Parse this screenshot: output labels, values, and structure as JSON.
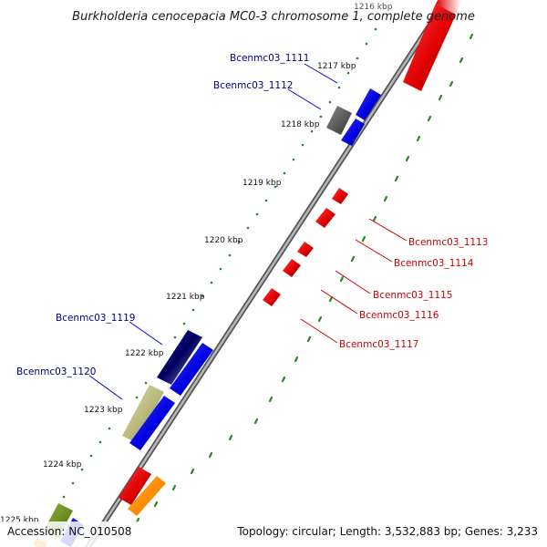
{
  "title": "Burkholderia cenocepacia MC0-3 chromosome 1, complete genome",
  "footer": {
    "accession": "Accession: NC_010508",
    "summary": "Topology: circular; Length: 3,532,883 bp; Genes: 3,233"
  },
  "ticks": [
    "1216 kbp",
    "1217 kbp",
    "1218 kbp",
    "1219 kbp",
    "1220 kbp",
    "1221 kbp",
    "1222 kbp",
    "1223 kbp",
    "1224 kbp",
    "1225 kbp"
  ],
  "colors": {
    "forward_label": "#00008b",
    "reverse_label": "#cc0000",
    "backbone": "#888888",
    "dots": "#228b22",
    "red": "#e00000",
    "blue": "#0000e0",
    "gray": "#606060",
    "navy": "#000066",
    "khaki": "#b8b67a",
    "orange": "#ff8c00",
    "olive": "#6b8e23"
  },
  "genes": [
    {
      "id": "Bcenmc03_1111",
      "labeled": true,
      "strand": "forward",
      "color": "blue"
    },
    {
      "id": "Bcenmc03_1112",
      "labeled": true,
      "strand": "forward",
      "color": "gray"
    },
    {
      "id": "Bcenmc03_1113",
      "labeled": true,
      "strand": "reverse",
      "color": "red"
    },
    {
      "id": "Bcenmc03_1114",
      "labeled": true,
      "strand": "reverse",
      "color": "red"
    },
    {
      "id": "Bcenmc03_1115",
      "labeled": true,
      "strand": "reverse",
      "color": "red"
    },
    {
      "id": "Bcenmc03_1116",
      "labeled": true,
      "strand": "reverse",
      "color": "red"
    },
    {
      "id": "Bcenmc03_1117",
      "labeled": true,
      "strand": "reverse",
      "color": "red"
    },
    {
      "id": "Bcenmc03_1119",
      "labeled": true,
      "strand": "forward",
      "color": "navy"
    },
    {
      "id": "Bcenmc03_1120",
      "labeled": true,
      "strand": "forward",
      "color": "khaki"
    }
  ]
}
